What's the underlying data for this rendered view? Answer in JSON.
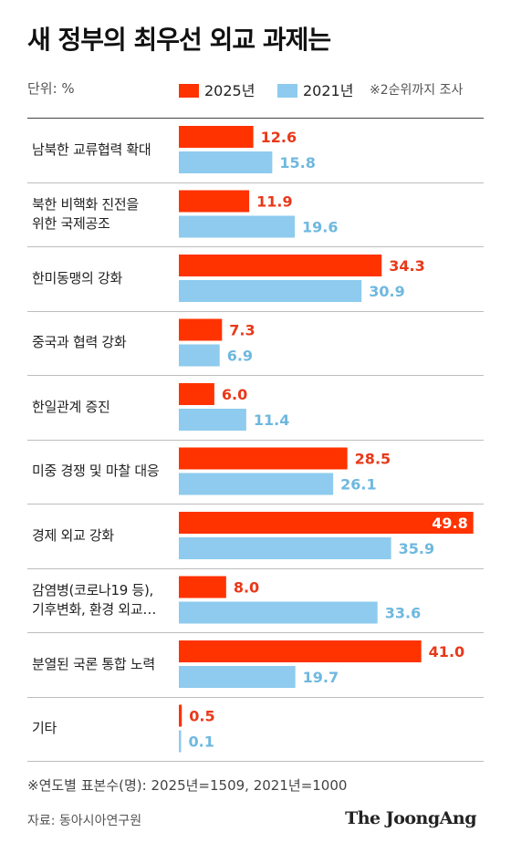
{
  "header": {
    "title": "새 정부의 최우선 외교 과제는",
    "unit": "단위: %",
    "note": "※2순위까지 조사"
  },
  "colors": {
    "series_2025": "#ff3300",
    "series_2021": "#8ecbee",
    "label_2025": "#e8391a",
    "label_2021": "#6fb8df"
  },
  "chart_data": {
    "type": "bar",
    "orientation": "horizontal",
    "categories": [
      "남북한 교류협력 확대",
      "북한 비핵화 진전을\n위한 국제공조",
      "한미동맹의 강화",
      "중국과 협력 강화",
      "한일관계 증진",
      "미중 경쟁 및 마찰 대응",
      "경제 외교 강화",
      "감염병(코로나19 등),\n기후변화, 환경 외교…",
      "분열된 국론 통합 노력",
      "기타"
    ],
    "series": [
      {
        "name": "2025년",
        "values": [
          12.6,
          11.9,
          34.3,
          7.3,
          6.0,
          28.5,
          49.8,
          8.0,
          41.0,
          0.5
        ]
      },
      {
        "name": "2021년",
        "values": [
          15.8,
          19.6,
          30.9,
          6.9,
          11.4,
          26.1,
          35.9,
          33.6,
          19.7,
          0.1
        ]
      }
    ],
    "value_labels": [
      [
        "12.6",
        "11.9",
        "34.3",
        "7.3",
        "6.0",
        "28.5",
        "49.8",
        "8.0",
        "41.0",
        "0.5"
      ],
      [
        "15.8",
        "19.6",
        "30.9",
        "6.9",
        "11.4",
        "26.1",
        "35.9",
        "33.6",
        "19.7",
        "0.1"
      ]
    ],
    "xlim": [
      0,
      50
    ],
    "legend_position": "top"
  },
  "footer": {
    "footnote": "※연도별 표본수(명): 2025년=1509, 2021년=1000",
    "source": "자료: 동아시아연구원",
    "logo": "The JoongAng"
  }
}
